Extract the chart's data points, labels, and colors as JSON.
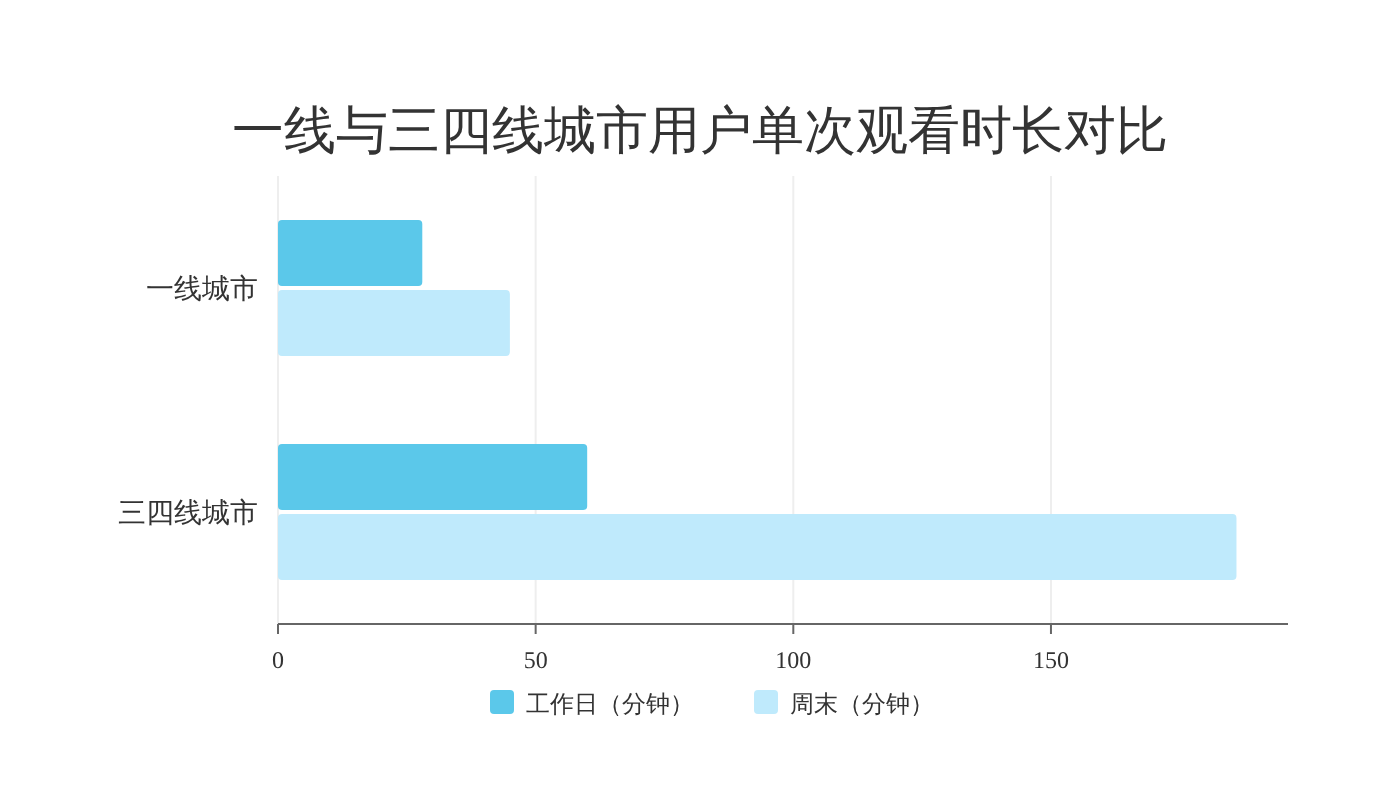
{
  "chart_data": {
    "type": "bar",
    "orientation": "horizontal",
    "title": "一线与三四线城市用户单次观看时长对比",
    "categories": [
      "一线城市",
      "三四线城市"
    ],
    "series": [
      {
        "name": "工作日（分钟）",
        "color": "#5bc8ea",
        "values": [
          28,
          60
        ]
      },
      {
        "name": "周末（分钟）",
        "color": "#bfeafc",
        "values": [
          45,
          186
        ]
      }
    ],
    "xlim": [
      0,
      196
    ],
    "xticks": [
      0,
      50,
      100,
      150
    ],
    "grid": "x",
    "legend": "bottom"
  }
}
